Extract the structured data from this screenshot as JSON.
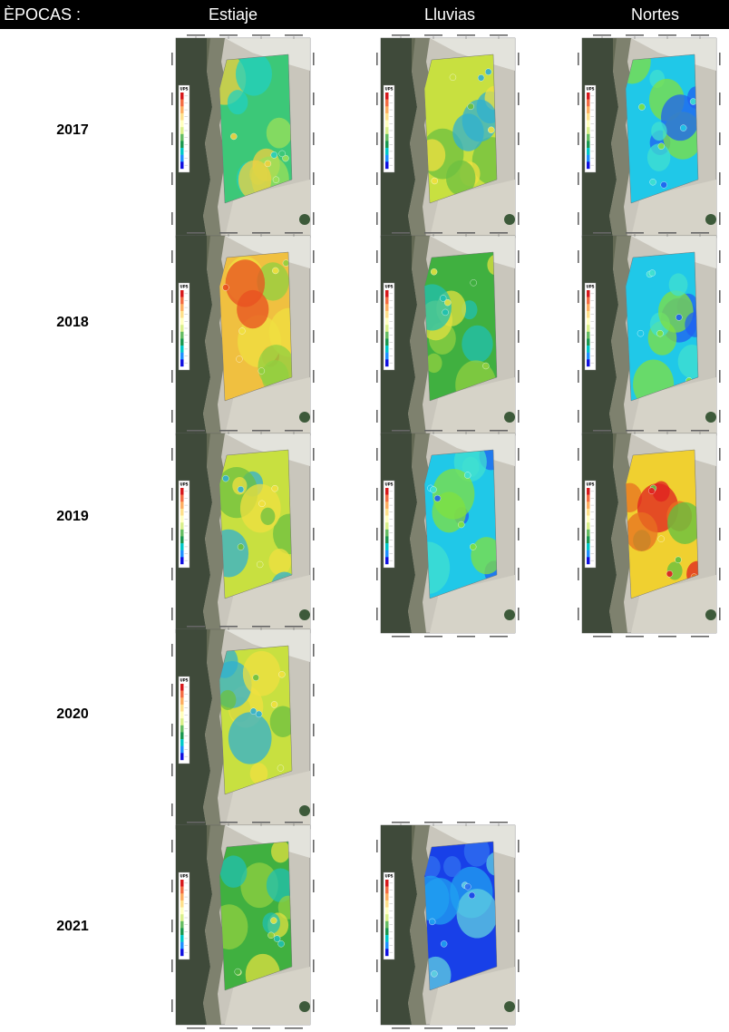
{
  "header": {
    "epocas_label": "ÈPOCAS :",
    "columns": [
      "Estiaje",
      "Lluvias",
      "Nortes"
    ]
  },
  "legend_label": "UPS",
  "rows": [
    {
      "year": "2017",
      "maps": [
        {
          "season": "Estiaje",
          "palette": "green-cyan",
          "blobs": "warm-patch"
        },
        {
          "season": "Lluvias",
          "palette": "yellow-green",
          "blobs": "warm-top"
        },
        {
          "season": "Nortes",
          "palette": "cyan-blue",
          "blobs": "cool"
        }
      ]
    },
    {
      "year": "2018",
      "maps": [
        {
          "season": "Estiaje",
          "palette": "orange-yellow",
          "blobs": "hot"
        },
        {
          "season": "Lluvias",
          "palette": "green",
          "blobs": "warm-center"
        },
        {
          "season": "Nortes",
          "palette": "cyan-blue",
          "blobs": "cool"
        }
      ]
    },
    {
      "year": "2019",
      "maps": [
        {
          "season": "Estiaje",
          "palette": "yellow-green",
          "blobs": "hot-left"
        },
        {
          "season": "Lluvias",
          "palette": "cyan-blue",
          "blobs": "cool"
        },
        {
          "season": "Nortes",
          "palette": "yellow-orange",
          "blobs": "hot-center"
        }
      ]
    },
    {
      "year": "2020",
      "maps": [
        {
          "season": "Estiaje",
          "palette": "yellow-green",
          "blobs": "mixed"
        }
      ]
    },
    {
      "year": "2021",
      "maps": [
        {
          "season": "Estiaje",
          "palette": "green",
          "blobs": "mixed"
        },
        {
          "season": "Lluvias",
          "palette": "blue",
          "blobs": "deep-blue"
        }
      ]
    }
  ],
  "colors": {
    "legend_scale": [
      "#d7191c",
      "#f46d43",
      "#fdae61",
      "#fee08b",
      "#ffffbf",
      "#d9ef8b",
      "#66bd63",
      "#1a9850",
      "#00c8c8",
      "#1e90ff",
      "#1010e0"
    ]
  }
}
